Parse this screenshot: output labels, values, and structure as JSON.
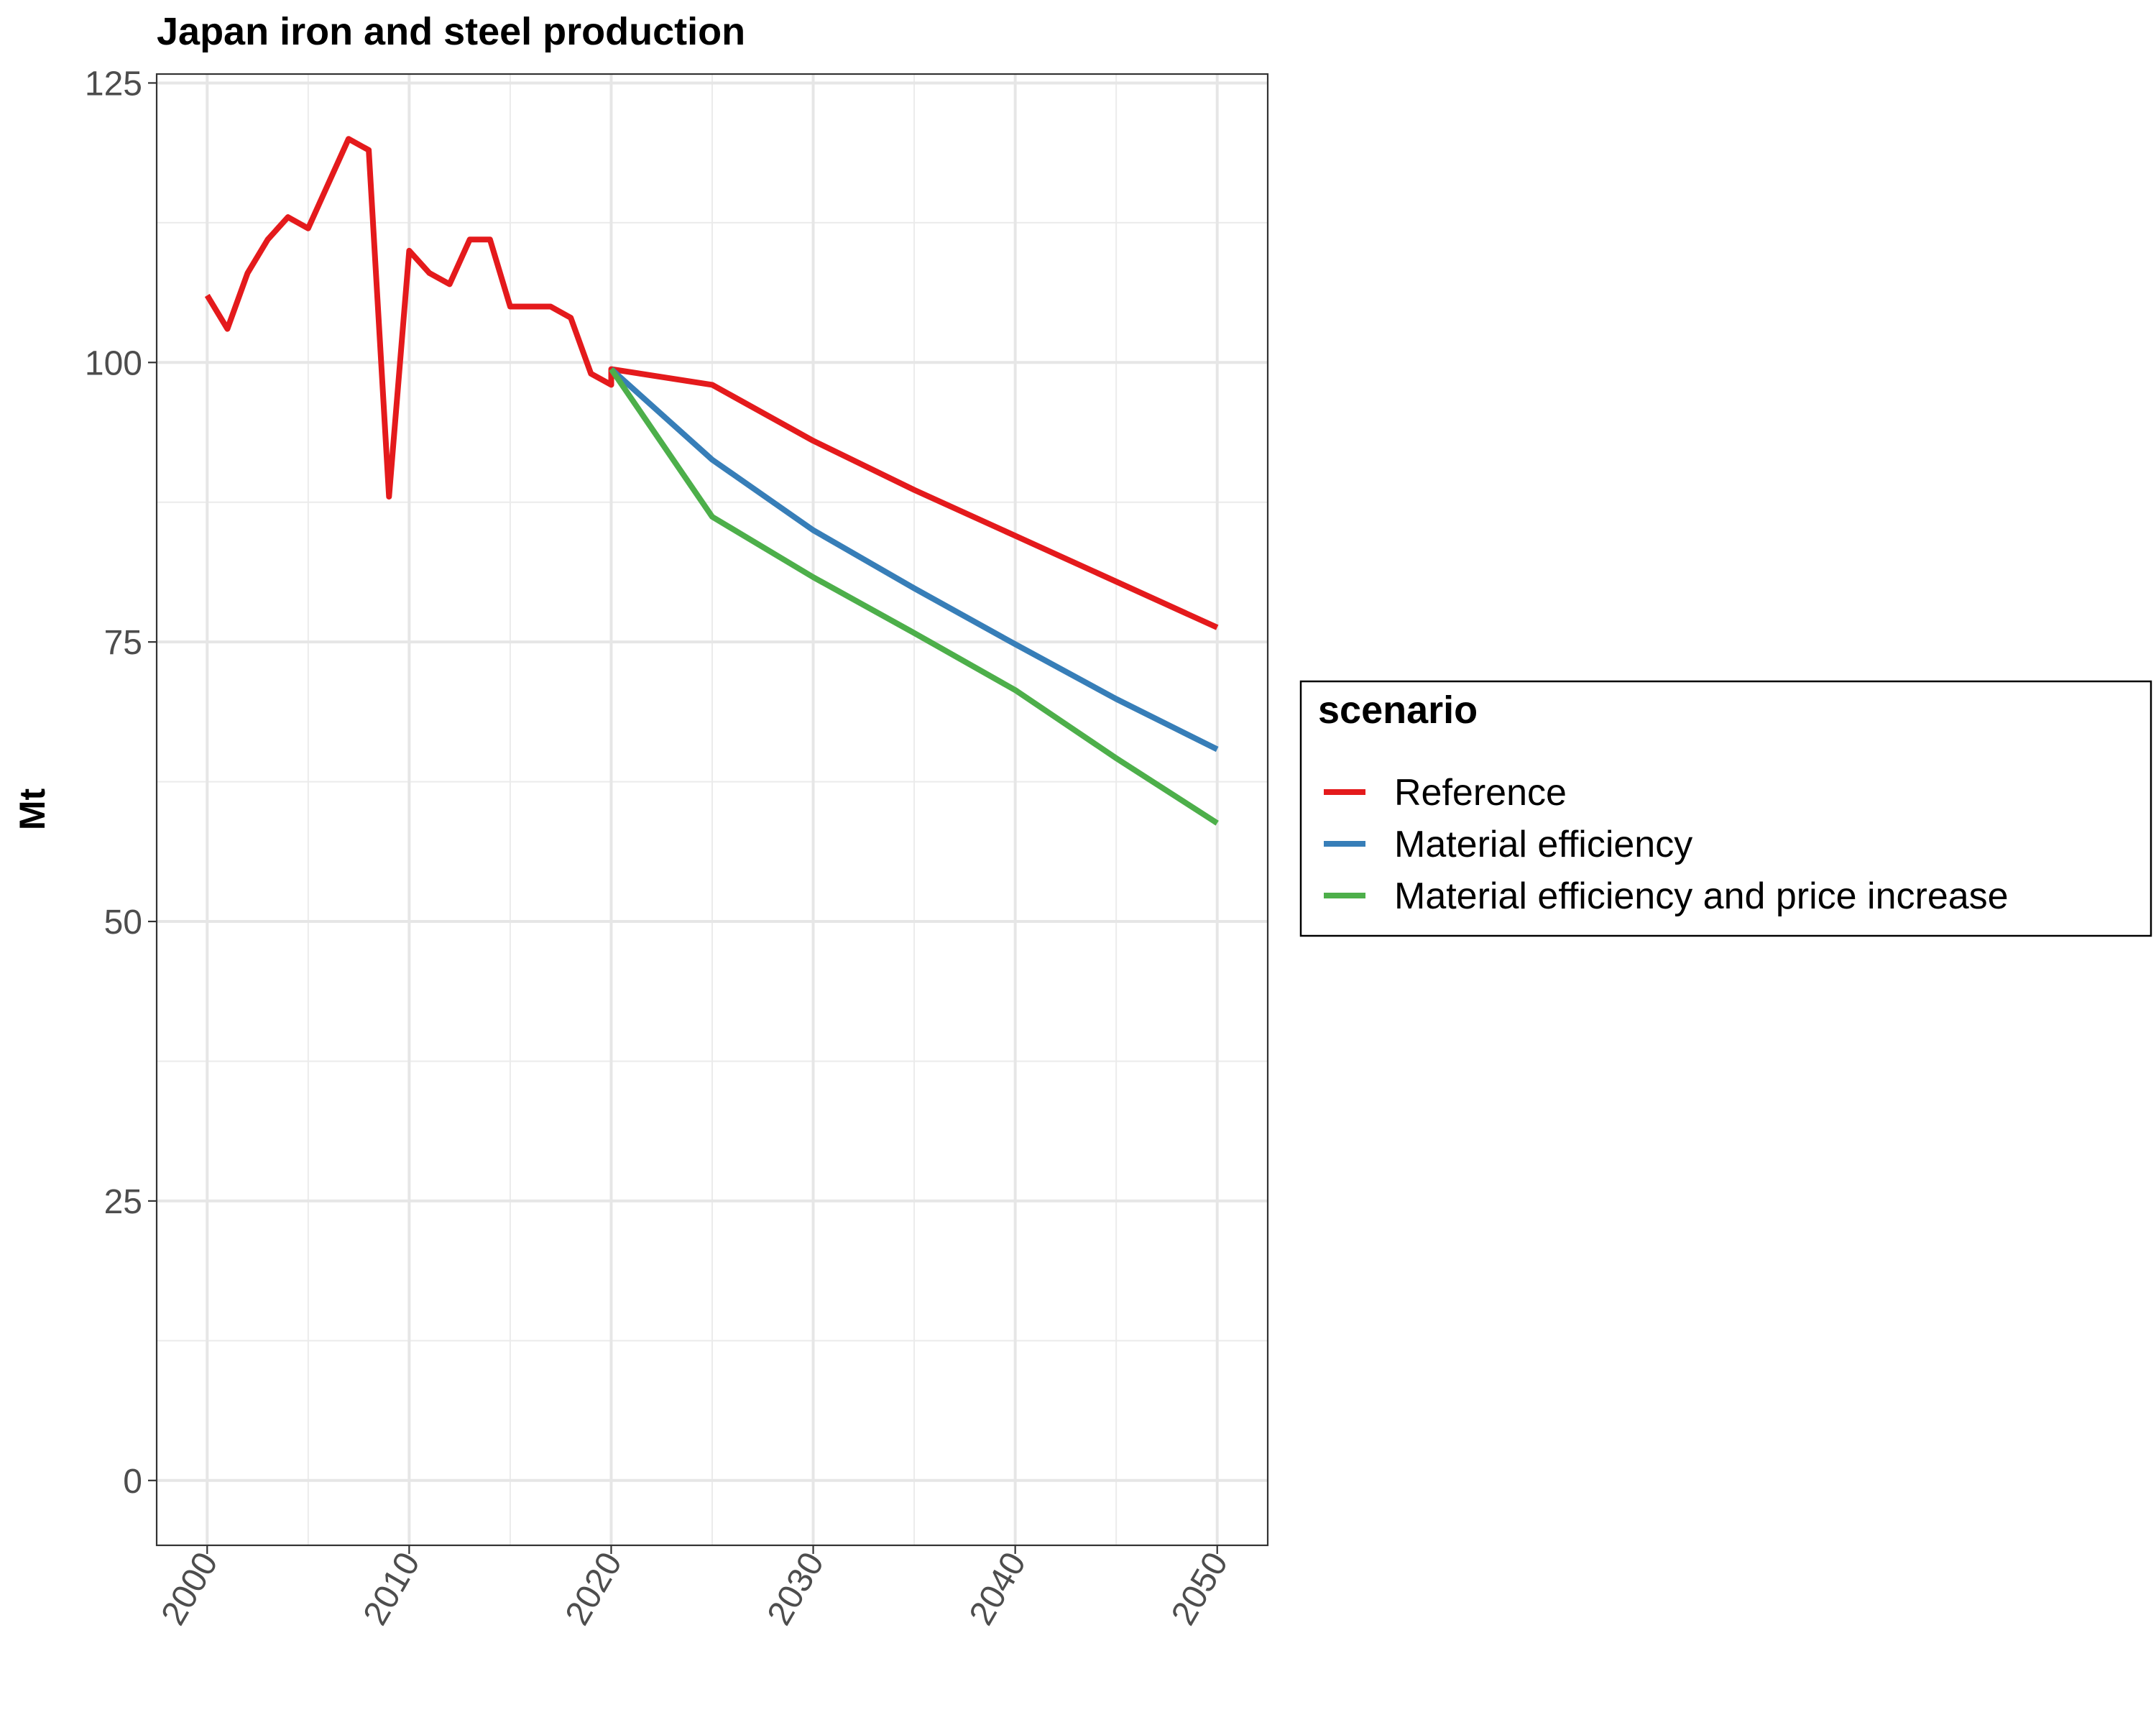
{
  "chart_data": {
    "type": "line",
    "title": "Japan  iron and steel production",
    "xlabel": "",
    "ylabel": "Mt",
    "xlim": [
      1997.5,
      2052.5
    ],
    "ylim": [
      -5.8,
      125.8
    ],
    "x_ticks": [
      2000,
      2010,
      2020,
      2030,
      2040,
      2050
    ],
    "y_ticks": [
      0,
      25,
      50,
      75,
      100,
      125
    ],
    "x_minor": [
      2005,
      2015,
      2025,
      2035,
      2045
    ],
    "y_minor": [
      12.5,
      37.5,
      62.5,
      87.5,
      112.5
    ],
    "grid": true,
    "legend": {
      "title": "scenario",
      "position": "right"
    },
    "series": [
      {
        "name": "Reference",
        "color": "#E41A1C",
        "x": [
          2000,
          2001,
          2002,
          2003,
          2004,
          2005,
          2006,
          2007,
          2008,
          2009,
          2010,
          2011,
          2012,
          2013,
          2014,
          2015,
          2016,
          2017,
          2018,
          2019,
          2020,
          2020,
          2025,
          2030,
          2035,
          2040,
          2045,
          2050
        ],
        "y": [
          106,
          103,
          108,
          111,
          113,
          112,
          116,
          120,
          119,
          88,
          110,
          108,
          107,
          111,
          111,
          105,
          105,
          105,
          104,
          99,
          98,
          99.4,
          98,
          93,
          88.6,
          84.5,
          80.4,
          76.3
        ]
      },
      {
        "name": "Material efficiency",
        "color": "#377EB8",
        "x": [
          2020,
          2025,
          2030,
          2035,
          2040,
          2045,
          2050
        ],
        "y": [
          99.4,
          91.3,
          85,
          79.8,
          74.8,
          69.9,
          65.4
        ]
      },
      {
        "name": "Material efficiency and price increase",
        "color": "#4DAF4A",
        "x": [
          2020,
          2025,
          2030,
          2035,
          2040,
          2045,
          2050
        ],
        "y": [
          99.4,
          86.2,
          80.8,
          75.8,
          70.7,
          64.6,
          58.8
        ]
      }
    ]
  }
}
